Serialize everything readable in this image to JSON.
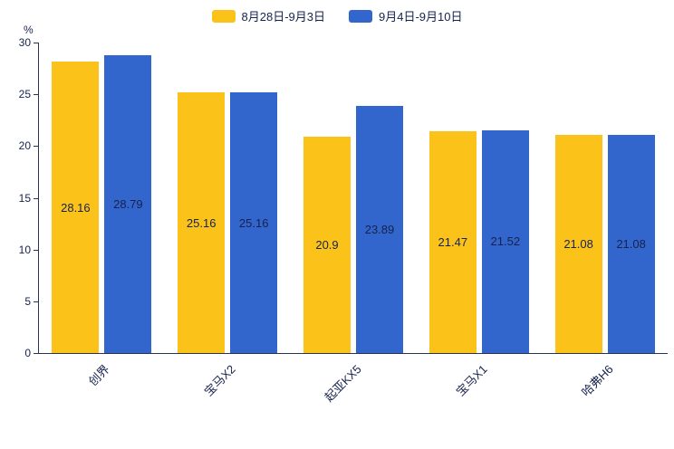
{
  "chart_data": {
    "type": "bar",
    "title": "",
    "categories": [
      "创界",
      "宝马X2",
      "起亚KX5",
      "宝马X1",
      "哈弗H6"
    ],
    "series": [
      {
        "name": "8月28日-9月3日",
        "color": "#FBC31A",
        "values": [
          28.16,
          25.16,
          20.9,
          21.47,
          21.08
        ]
      },
      {
        "name": "9月4日-9月10日",
        "color": "#3366CC",
        "values": [
          28.79,
          25.16,
          23.89,
          21.52,
          21.08
        ]
      }
    ],
    "ylabel": "%",
    "ylim": [
      0,
      30
    ],
    "yticks": [
      0,
      5,
      10,
      15,
      20,
      25,
      30
    ],
    "grid": false,
    "legend_position": "top",
    "value_labels": "inside-center",
    "x_label_rotation": -45,
    "text_color": "#16224d"
  }
}
